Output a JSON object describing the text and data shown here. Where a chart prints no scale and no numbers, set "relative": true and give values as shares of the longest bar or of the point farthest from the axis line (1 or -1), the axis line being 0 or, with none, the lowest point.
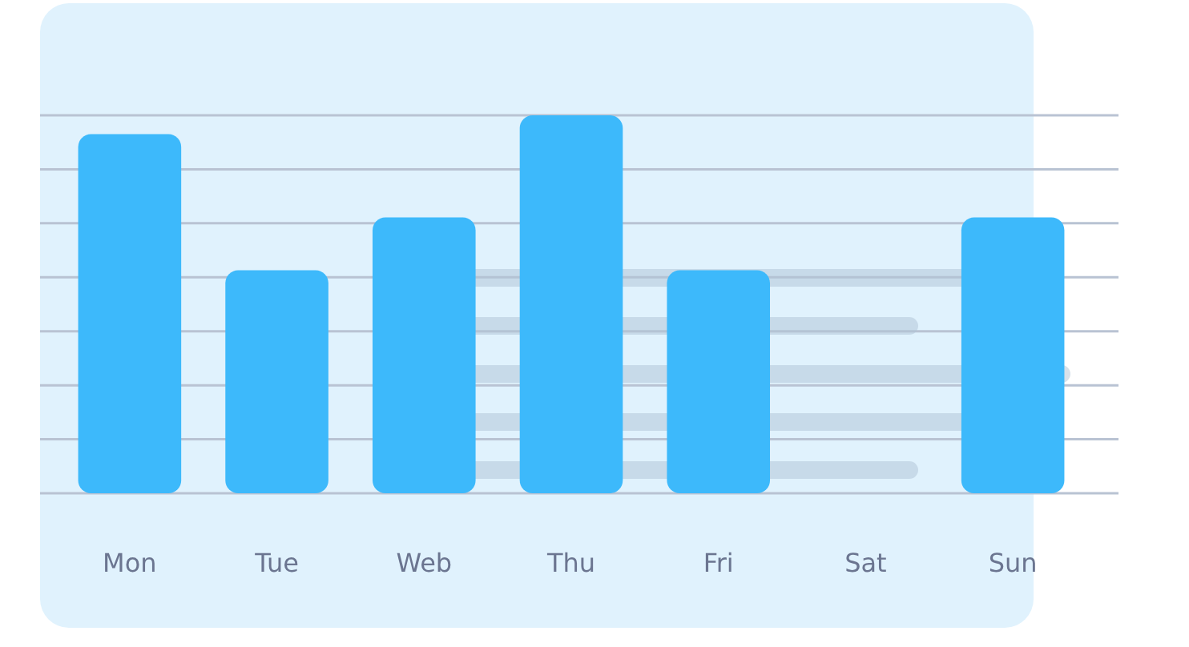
{
  "chart_data": {
    "type": "bar",
    "relative": true,
    "categories": [
      "Mon",
      "Tue",
      "Web",
      "Thu",
      "Fri",
      "Sat",
      "Sun"
    ],
    "values": [
      0.95,
      0.59,
      0.73,
      1,
      0.59,
      null,
      0.73
    ],
    "color": "#3db9fb",
    "grid": "y"
  }
}
